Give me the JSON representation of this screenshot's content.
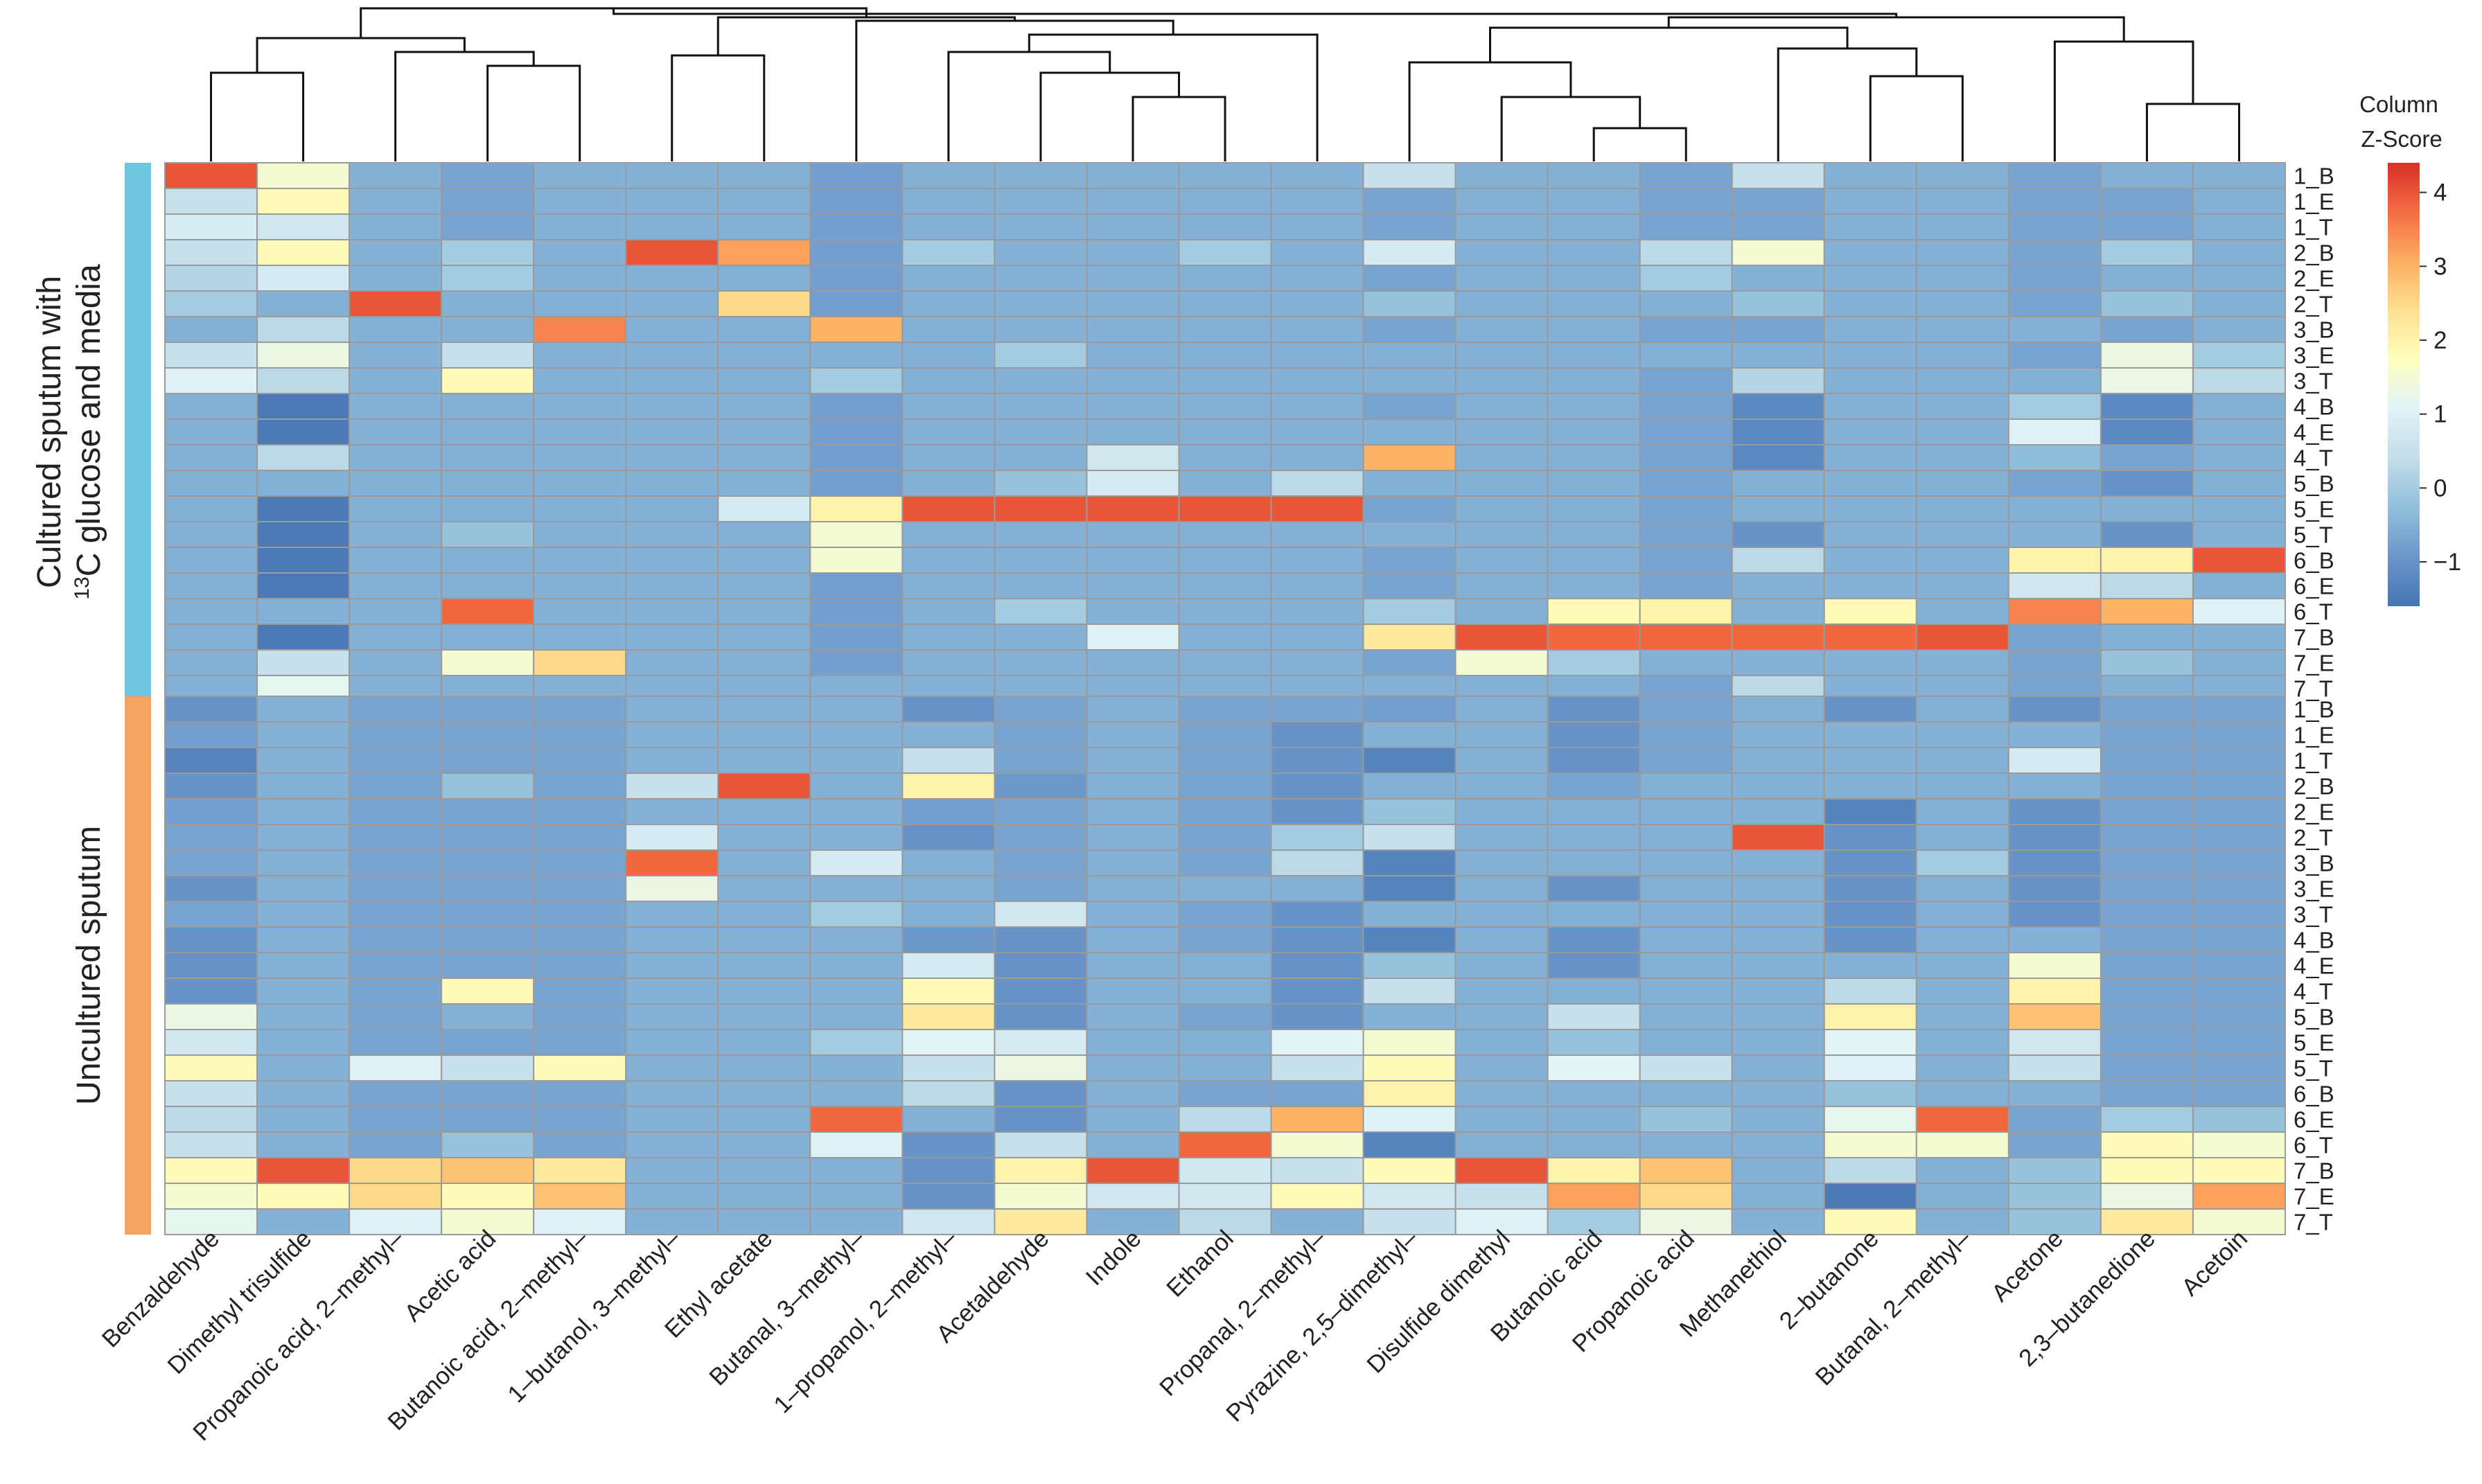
{
  "chart_data": {
    "type": "heatmap",
    "title": "",
    "columns": [
      "Benzaldehyde",
      "Dimethyl trisulfide",
      "Propanoic acid, 2–methyl–",
      "Acetic acid",
      "Butanoic acid, 2–methyl–",
      "1–butanol, 3–methyl–",
      "Ethyl acetate",
      "Butanal, 3–methyl–",
      "1–propanol, 2–methyl–",
      "Acetaldehyde",
      "Indole",
      "Ethanol",
      "Propanal, 2–methyl–",
      "Pyrazine, 2,5–dimethyl–",
      "Disulfide dimethyl",
      "Butanoic acid",
      "Propanoic acid",
      "Methanethiol",
      "2–butanone",
      "Butanal, 2–methyl–",
      "Acetone",
      "2,3–butanedione",
      "Acetoin"
    ],
    "rows": [
      "1_B",
      "1_E",
      "1_T",
      "2_B",
      "2_E",
      "2_T",
      "3_B",
      "3_E",
      "3_T",
      "4_B",
      "4_E",
      "4_T",
      "5_B",
      "5_E",
      "5_T",
      "6_B",
      "6_E",
      "6_T",
      "7_B",
      "7_E",
      "7_T"
    ],
    "panels": [
      {
        "label_line1": "Cultured sputum with",
        "label_line2_sup": "13",
        "label_line2_rest": "C glucose and media",
        "bar_color": "#6fc6e0",
        "values": [
          [
            4,
            1.5,
            -0.5,
            -0.7,
            -0.5,
            -0.5,
            -0.5,
            -0.8,
            -0.5,
            -0.5,
            -0.5,
            -0.5,
            -0.5,
            0.5,
            -0.5,
            -0.5,
            -0.7,
            0.5,
            -0.5,
            -0.5,
            -0.7,
            -0.5,
            -0.5
          ],
          [
            0.5,
            1.8,
            -0.5,
            -0.7,
            -0.5,
            -0.5,
            -0.5,
            -0.8,
            -0.5,
            -0.5,
            -0.5,
            -0.5,
            -0.5,
            -0.7,
            -0.5,
            -0.5,
            -0.7,
            -0.7,
            -0.5,
            -0.5,
            -0.7,
            -0.7,
            -0.5
          ],
          [
            0.9,
            0.7,
            -0.5,
            -0.7,
            -0.5,
            -0.5,
            -0.5,
            -0.8,
            -0.5,
            -0.5,
            -0.5,
            -0.5,
            -0.5,
            -0.7,
            -0.5,
            -0.5,
            -0.7,
            -0.7,
            -0.5,
            -0.5,
            -0.7,
            -0.7,
            -0.5
          ],
          [
            0.5,
            1.8,
            -0.5,
            0,
            -0.5,
            4,
            3.2,
            -0.8,
            0,
            -0.5,
            -0.5,
            0,
            -0.5,
            0.8,
            -0.5,
            -0.5,
            0.3,
            1.5,
            -0.5,
            -0.5,
            -0.7,
            0,
            -0.5
          ],
          [
            0.2,
            0.8,
            -0.5,
            0,
            -0.5,
            -0.5,
            -0.5,
            -0.8,
            -0.5,
            -0.5,
            -0.5,
            -0.5,
            -0.5,
            -0.7,
            -0.5,
            -0.5,
            0,
            -0.5,
            -0.5,
            -0.5,
            -0.7,
            -0.5,
            -0.5
          ],
          [
            0,
            -0.5,
            4,
            -0.5,
            -0.5,
            -0.5,
            2.5,
            -0.8,
            -0.5,
            -0.5,
            -0.5,
            -0.5,
            -0.5,
            -0.2,
            -0.5,
            -0.5,
            -0.5,
            -0.2,
            -0.5,
            -0.5,
            -0.7,
            -0.2,
            -0.5
          ],
          [
            -0.5,
            0.3,
            -0.5,
            -0.5,
            3.5,
            -0.5,
            -0.5,
            3,
            -0.5,
            -0.5,
            -0.5,
            -0.5,
            -0.5,
            -0.7,
            -0.5,
            -0.5,
            -0.7,
            -0.7,
            -0.5,
            -0.5,
            -0.5,
            -0.7,
            -0.5
          ],
          [
            0.5,
            1.3,
            -0.5,
            0.5,
            -0.5,
            -0.5,
            -0.5,
            -0.5,
            -0.5,
            0,
            -0.5,
            -0.5,
            -0.5,
            -0.5,
            -0.5,
            -0.5,
            -0.5,
            -0.5,
            -0.5,
            -0.5,
            -0.7,
            1.3,
            0
          ],
          [
            1,
            0.3,
            -0.5,
            1.8,
            -0.5,
            -0.5,
            -0.5,
            0,
            -0.5,
            -0.5,
            -0.5,
            -0.5,
            -0.5,
            -0.5,
            -0.5,
            -0.5,
            -0.7,
            0.2,
            -0.5,
            -0.5,
            -0.5,
            1.3,
            0.3
          ],
          [
            -0.5,
            -1.5,
            -0.5,
            -0.5,
            -0.5,
            -0.5,
            -0.5,
            -0.8,
            -0.5,
            -0.5,
            -0.5,
            -0.5,
            -0.5,
            -0.7,
            -0.5,
            -0.5,
            -0.7,
            -1.2,
            -0.5,
            -0.5,
            0,
            -1.2,
            -0.5
          ],
          [
            -0.5,
            -1.5,
            -0.5,
            -0.5,
            -0.5,
            -0.5,
            -0.5,
            -0.8,
            -0.5,
            -0.5,
            -0.5,
            -0.5,
            -0.5,
            -0.5,
            -0.5,
            -0.5,
            -0.7,
            -1.2,
            -0.5,
            -0.5,
            1,
            -1.2,
            -0.5
          ],
          [
            -0.5,
            0.3,
            -0.5,
            -0.5,
            -0.5,
            -0.5,
            -0.5,
            -0.8,
            -0.5,
            -0.5,
            0.7,
            -0.5,
            -0.5,
            3,
            -0.5,
            -0.5,
            -0.7,
            -1.2,
            -0.5,
            -0.5,
            -0.3,
            -0.7,
            -0.5
          ],
          [
            -0.5,
            -0.5,
            -0.5,
            -0.5,
            -0.5,
            -0.5,
            -0.5,
            -0.8,
            -0.5,
            -0.2,
            0.8,
            -0.5,
            0.3,
            -0.5,
            -0.5,
            -0.5,
            -0.7,
            -0.5,
            -0.5,
            -0.5,
            -0.7,
            -1,
            -0.5
          ],
          [
            -0.5,
            -1.5,
            -0.5,
            -0.5,
            -0.5,
            -0.5,
            0.8,
            2,
            4,
            4,
            4,
            4,
            4,
            -0.7,
            -0.5,
            -0.5,
            -0.7,
            -0.5,
            -0.5,
            -0.5,
            -0.5,
            -0.5,
            -0.5
          ],
          [
            -0.5,
            -1.5,
            -0.5,
            -0.2,
            -0.5,
            -0.5,
            -0.5,
            1.5,
            -0.5,
            -0.5,
            -0.5,
            -0.5,
            -0.5,
            -0.5,
            -0.5,
            -0.5,
            -0.7,
            -1,
            -0.5,
            -0.5,
            -0.5,
            -1,
            -0.5
          ],
          [
            -0.5,
            -1.5,
            -0.5,
            -0.5,
            -0.5,
            -0.5,
            -0.5,
            1.5,
            -0.5,
            -0.5,
            -0.5,
            -0.5,
            -0.5,
            -0.7,
            -0.5,
            -0.5,
            -0.7,
            0.3,
            -0.5,
            -0.5,
            2,
            2,
            4
          ],
          [
            -0.5,
            -1.5,
            -0.5,
            -0.5,
            -0.5,
            -0.5,
            -0.5,
            -0.8,
            -0.5,
            -0.5,
            -0.5,
            -0.5,
            -0.5,
            -0.7,
            -0.5,
            -0.5,
            -0.7,
            -0.5,
            -0.5,
            -0.5,
            0.7,
            0.3,
            -0.5
          ],
          [
            -0.5,
            -0.5,
            -0.5,
            3.8,
            -0.5,
            -0.5,
            -0.5,
            -0.8,
            -0.5,
            0,
            -0.5,
            -0.5,
            -0.5,
            0,
            -0.5,
            1.8,
            2,
            -0.5,
            1.8,
            -0.5,
            3.5,
            3,
            1
          ],
          [
            -0.5,
            -1.5,
            -0.5,
            -0.5,
            -0.5,
            -0.5,
            -0.5,
            -0.8,
            -0.5,
            -0.5,
            1,
            -0.5,
            -0.5,
            2.2,
            4,
            3.8,
            3.8,
            3.8,
            3.8,
            4,
            -0.7,
            -0.5,
            -0.5
          ],
          [
            -0.5,
            0.5,
            -0.5,
            1.5,
            2.5,
            -0.5,
            -0.5,
            -0.8,
            -0.5,
            -0.5,
            -0.5,
            -0.5,
            -0.5,
            -0.7,
            1.5,
            0,
            -0.5,
            -0.5,
            -0.5,
            -0.5,
            -0.7,
            -0.2,
            -0.5
          ],
          [
            -0.5,
            1.2,
            -0.5,
            -0.5,
            -0.5,
            -0.5,
            -0.5,
            -0.5,
            -0.5,
            -0.5,
            -0.5,
            -0.5,
            -0.5,
            -0.5,
            -0.5,
            -0.5,
            -0.7,
            0.3,
            -0.5,
            -0.5,
            -0.7,
            -0.5,
            -0.5
          ]
        ]
      },
      {
        "label_line1": "Uncultured sputum",
        "label_line2_sup": "",
        "label_line2_rest": "",
        "bar_color": "#f4a460",
        "values": [
          [
            -1,
            -0.5,
            -0.7,
            -0.7,
            -0.7,
            -0.5,
            -0.5,
            -0.5,
            -1,
            -0.7,
            -0.5,
            -0.7,
            -0.7,
            -0.8,
            -0.5,
            -1,
            -0.7,
            -0.5,
            -1,
            -0.5,
            -1,
            -0.7,
            -0.7
          ],
          [
            -0.8,
            -0.5,
            -0.7,
            -0.7,
            -0.7,
            -0.5,
            -0.5,
            -0.5,
            -0.5,
            -0.7,
            -0.5,
            -0.7,
            -1,
            -0.5,
            -0.5,
            -1,
            -0.7,
            -0.5,
            -0.5,
            -0.5,
            -0.5,
            -0.7,
            -0.7
          ],
          [
            -1.3,
            -0.5,
            -0.7,
            -0.7,
            -0.7,
            -0.5,
            -0.5,
            -0.5,
            0.5,
            -0.7,
            -0.5,
            -0.7,
            -1,
            -1.3,
            -0.5,
            -1,
            -0.7,
            -0.5,
            -0.5,
            -0.5,
            0.8,
            -0.7,
            -0.7
          ],
          [
            -1,
            -0.5,
            -0.7,
            -0.2,
            -0.7,
            0.5,
            4,
            -0.5,
            2,
            -0.9,
            -0.5,
            -0.7,
            -1,
            -0.5,
            -0.5,
            -0.7,
            -0.5,
            -0.5,
            -0.5,
            -0.5,
            -0.5,
            -0.7,
            -0.7
          ],
          [
            -0.8,
            -0.5,
            -0.7,
            -0.7,
            -0.7,
            -0.5,
            -0.5,
            -0.5,
            -0.8,
            -0.7,
            -0.5,
            -0.7,
            -1,
            -0.2,
            -0.5,
            -0.5,
            -0.5,
            -0.5,
            -1.3,
            -0.5,
            -1,
            -0.7,
            -0.7
          ],
          [
            -0.7,
            -0.5,
            -0.7,
            -0.7,
            -0.7,
            0.8,
            -0.5,
            -0.5,
            -1,
            -0.7,
            -0.5,
            -0.7,
            0,
            0.5,
            -0.5,
            -0.5,
            -0.5,
            4,
            -1,
            -0.5,
            -1,
            -0.7,
            -0.7
          ],
          [
            -0.7,
            -0.5,
            -0.7,
            -0.7,
            -0.7,
            3.8,
            -0.5,
            0.8,
            -0.5,
            -0.7,
            -0.5,
            -0.7,
            0.3,
            -1.3,
            -0.5,
            -0.5,
            -0.5,
            -0.5,
            -1,
            0,
            -1,
            -0.7,
            -0.7
          ],
          [
            -1,
            -0.5,
            -0.7,
            -0.7,
            -0.7,
            1.3,
            -0.5,
            -0.5,
            -0.5,
            -0.7,
            -0.5,
            -0.5,
            -0.5,
            -1.3,
            -0.5,
            -1,
            -0.5,
            -0.5,
            -1,
            -0.5,
            -1,
            -0.7,
            -0.7
          ],
          [
            -0.7,
            -0.5,
            -0.7,
            -0.7,
            -0.7,
            -0.5,
            -0.5,
            0,
            -0.5,
            0.7,
            -0.5,
            -0.7,
            -1,
            -0.5,
            -0.5,
            -0.5,
            -0.5,
            -0.5,
            -1,
            -0.5,
            -1,
            -0.7,
            -0.7
          ],
          [
            -1,
            -0.5,
            -0.7,
            -0.7,
            -0.7,
            -0.5,
            -0.5,
            -0.5,
            -0.9,
            -1,
            -0.5,
            -0.7,
            -1,
            -1.3,
            -0.5,
            -1,
            -0.5,
            -0.5,
            -1,
            -0.5,
            -0.5,
            -0.7,
            -0.7
          ],
          [
            -1,
            -0.5,
            -0.7,
            -0.7,
            -0.7,
            -0.5,
            -0.5,
            -0.5,
            0.8,
            -1,
            -0.5,
            -0.5,
            -1,
            -0.2,
            -0.5,
            -1,
            -0.5,
            -0.5,
            -0.5,
            -0.5,
            1.5,
            -0.7,
            -0.7
          ],
          [
            -1,
            -0.5,
            -0.7,
            1.8,
            -0.7,
            -0.5,
            -0.5,
            -0.5,
            1.8,
            -1,
            -0.5,
            -0.5,
            -1,
            0.5,
            -0.5,
            -0.5,
            -0.5,
            -0.5,
            0.3,
            -0.5,
            2,
            -0.7,
            -0.7
          ],
          [
            1.3,
            -0.5,
            -0.7,
            -0.5,
            -0.7,
            -0.5,
            -0.5,
            -0.5,
            2.2,
            -1,
            -0.5,
            -0.7,
            -1,
            -0.5,
            -0.5,
            0.5,
            -0.5,
            -0.5,
            2,
            -0.5,
            2.8,
            -0.7,
            -0.7
          ],
          [
            0.7,
            -0.5,
            -0.7,
            -0.7,
            -0.7,
            -0.5,
            -0.5,
            0,
            1.1,
            0.8,
            -0.5,
            -0.5,
            1.1,
            1.5,
            -0.5,
            -0.2,
            -0.5,
            -0.5,
            1.1,
            -0.5,
            0.7,
            -0.7,
            -0.7
          ],
          [
            1.8,
            -0.5,
            1,
            0.5,
            1.8,
            -0.5,
            -0.5,
            -0.5,
            0.5,
            1.3,
            -0.5,
            -0.5,
            0.5,
            1.8,
            -0.5,
            1.1,
            0.5,
            -0.5,
            1,
            -0.5,
            0.5,
            -0.7,
            -0.7
          ],
          [
            0.5,
            -0.5,
            -0.7,
            -0.7,
            -0.7,
            -0.5,
            -0.5,
            -0.5,
            0.3,
            -1,
            -0.5,
            -0.7,
            -0.7,
            2,
            -0.5,
            -0.5,
            -0.5,
            -0.5,
            -0.2,
            -0.5,
            -0.5,
            -0.7,
            -0.7
          ],
          [
            0.3,
            -0.5,
            -0.7,
            -0.7,
            -0.7,
            -0.5,
            -0.5,
            3.8,
            -0.5,
            -1,
            -0.5,
            0.3,
            3,
            1,
            -0.5,
            -0.5,
            -0.2,
            -0.5,
            1.2,
            3.8,
            -0.7,
            0,
            -0.2
          ],
          [
            0.5,
            -0.5,
            -0.7,
            -0.2,
            -0.7,
            -0.5,
            -0.5,
            1,
            -1,
            0.5,
            -0.5,
            3.8,
            1.5,
            -1.3,
            -0.5,
            -0.5,
            -0.5,
            -0.5,
            1.5,
            1.5,
            -0.7,
            1.8,
            1.5
          ],
          [
            1.8,
            4,
            2.5,
            2.8,
            2.2,
            -0.5,
            -0.5,
            -0.5,
            -1,
            2,
            4,
            0.7,
            0.5,
            1.8,
            4,
            2,
            2.8,
            -0.5,
            0.3,
            -0.5,
            -0.2,
            1.8,
            1.8
          ],
          [
            1.5,
            1.8,
            2.5,
            1.8,
            2.8,
            -0.5,
            -0.5,
            -0.5,
            -1,
            1.5,
            0.7,
            0.7,
            1.8,
            0.7,
            0.5,
            3.2,
            2.5,
            -0.5,
            -1.5,
            -0.5,
            -0.2,
            1.3,
            3.2
          ],
          [
            1.2,
            -0.5,
            1,
            1.5,
            1,
            -0.5,
            -0.5,
            -0.5,
            0.7,
            2.2,
            -0.5,
            0.3,
            -0.5,
            0.5,
            1,
            0,
            1.3,
            -0.5,
            1.8,
            -0.5,
            -0.2,
            2.2,
            1.5
          ]
        ]
      }
    ],
    "colorbar": {
      "title_line1": "Column",
      "title_line2": "Z-Score",
      "ticks": [
        "4",
        "3",
        "2",
        "1",
        "0",
        "−1"
      ],
      "tick_values": [
        4,
        3,
        2,
        1,
        0,
        -1
      ],
      "range": [
        -1.6,
        4.4
      ],
      "colors": [
        "#4575b4",
        "#6b96c9",
        "#91bfdb",
        "#c4dde9",
        "#e0f3f8",
        "#ffffbf",
        "#fee090",
        "#fdae61",
        "#f46d43",
        "#d73027"
      ]
    }
  }
}
